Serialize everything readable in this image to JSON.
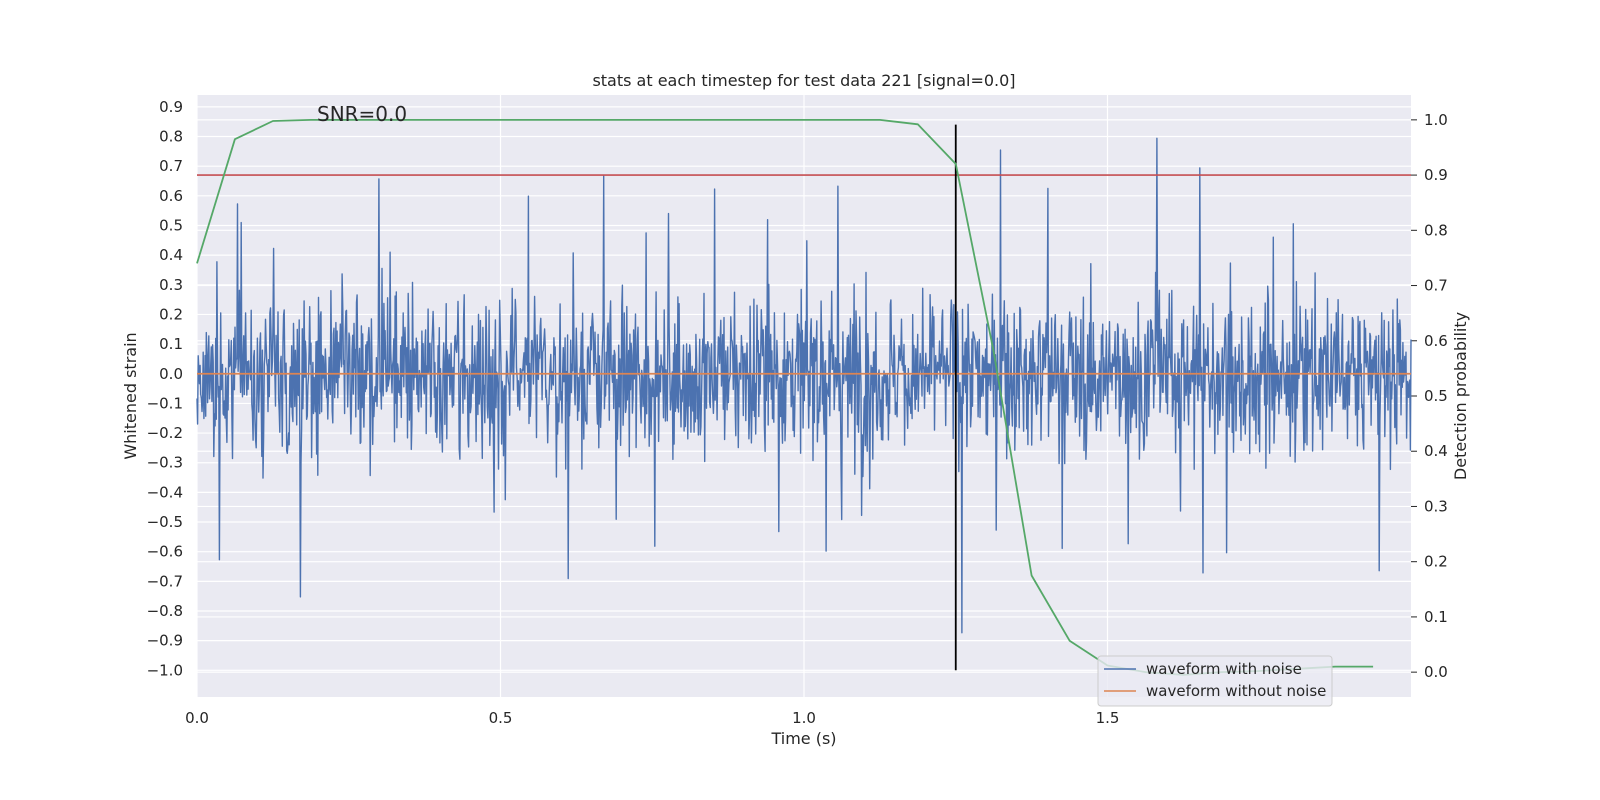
{
  "chart_data": {
    "type": "line",
    "title": "stats at each timestep for test data 221 [signal=0.0]",
    "xlabel": "Time (s)",
    "ylabel": "Whitened strain",
    "y2label": "Detection probability",
    "annotation": "SNR=0.0",
    "xlim": [
      0.0,
      2.0
    ],
    "ylim": [
      -1.09,
      0.94
    ],
    "y2lim": [
      -0.045,
      1.045
    ],
    "x_ticks": [
      0.0,
      0.5,
      1.0,
      1.5
    ],
    "x_tick_labels": [
      "0.0",
      "0.5",
      "1.0",
      "1.5"
    ],
    "y_ticks": [
      0.9,
      0.8,
      0.7,
      0.6,
      0.5,
      0.4,
      0.3,
      0.2,
      0.1,
      0.0,
      -0.1,
      -0.2,
      -0.3,
      -0.4,
      -0.5,
      -0.6,
      -0.7,
      -0.8,
      -0.9,
      -1.0
    ],
    "y_tick_labels": [
      "0.9",
      "0.8",
      "0.7",
      "0.6",
      "0.5",
      "0.4",
      "0.3",
      "0.2",
      "0.1",
      "0.0",
      "−0.1",
      "−0.2",
      "−0.3",
      "−0.4",
      "−0.5",
      "−0.6",
      "−0.7",
      "−0.8",
      "−0.9",
      "−1.0"
    ],
    "y2_ticks": [
      1.0,
      0.9,
      0.8,
      0.7,
      0.6,
      0.5,
      0.4,
      0.3,
      0.2,
      0.1,
      0.0
    ],
    "y2_tick_labels": [
      "1.0",
      "0.9",
      "0.8",
      "0.7",
      "0.6",
      "0.5",
      "0.4",
      "0.3",
      "0.2",
      "0.1",
      "0.0"
    ],
    "grid": true,
    "legend_position": "lower-right",
    "series": [
      {
        "name": "waveform with noise",
        "color": "#4c72b0",
        "axis": "left",
        "kind": "noise",
        "x_range": [
          0.0,
          2.0
        ],
        "y_range": [
          -1.0,
          0.84
        ]
      },
      {
        "name": "waveform without noise",
        "color": "#dd8452",
        "axis": "left",
        "x": [
          0.0,
          2.0
        ],
        "y": [
          0.0,
          0.0
        ]
      },
      {
        "name": "",
        "color": "#55a868",
        "axis": "right",
        "x": [
          0.0,
          0.0625,
          0.125,
          0.1875,
          0.25,
          0.5,
          0.75,
          1.0,
          1.125,
          1.1875,
          1.25,
          1.3125,
          1.375,
          1.4375,
          1.5,
          1.5625,
          1.625,
          1.6875,
          1.75,
          1.8125,
          1.875,
          1.9375
        ],
        "y": [
          0.74,
          0.965,
          0.998,
          1.0,
          1.0,
          1.0,
          1.0,
          1.0,
          1.0,
          0.992,
          0.92,
          0.58,
          0.175,
          0.057,
          0.012,
          0.0,
          -0.005,
          0.0,
          0.002,
          0.006,
          0.01,
          0.01
        ]
      }
    ],
    "threshold": {
      "value": 0.9,
      "axis": "right",
      "color": "#c44e52"
    },
    "event_marker": {
      "x": 1.25,
      "y_from": -1.0,
      "y_to": 0.84,
      "color": "#000000"
    }
  }
}
